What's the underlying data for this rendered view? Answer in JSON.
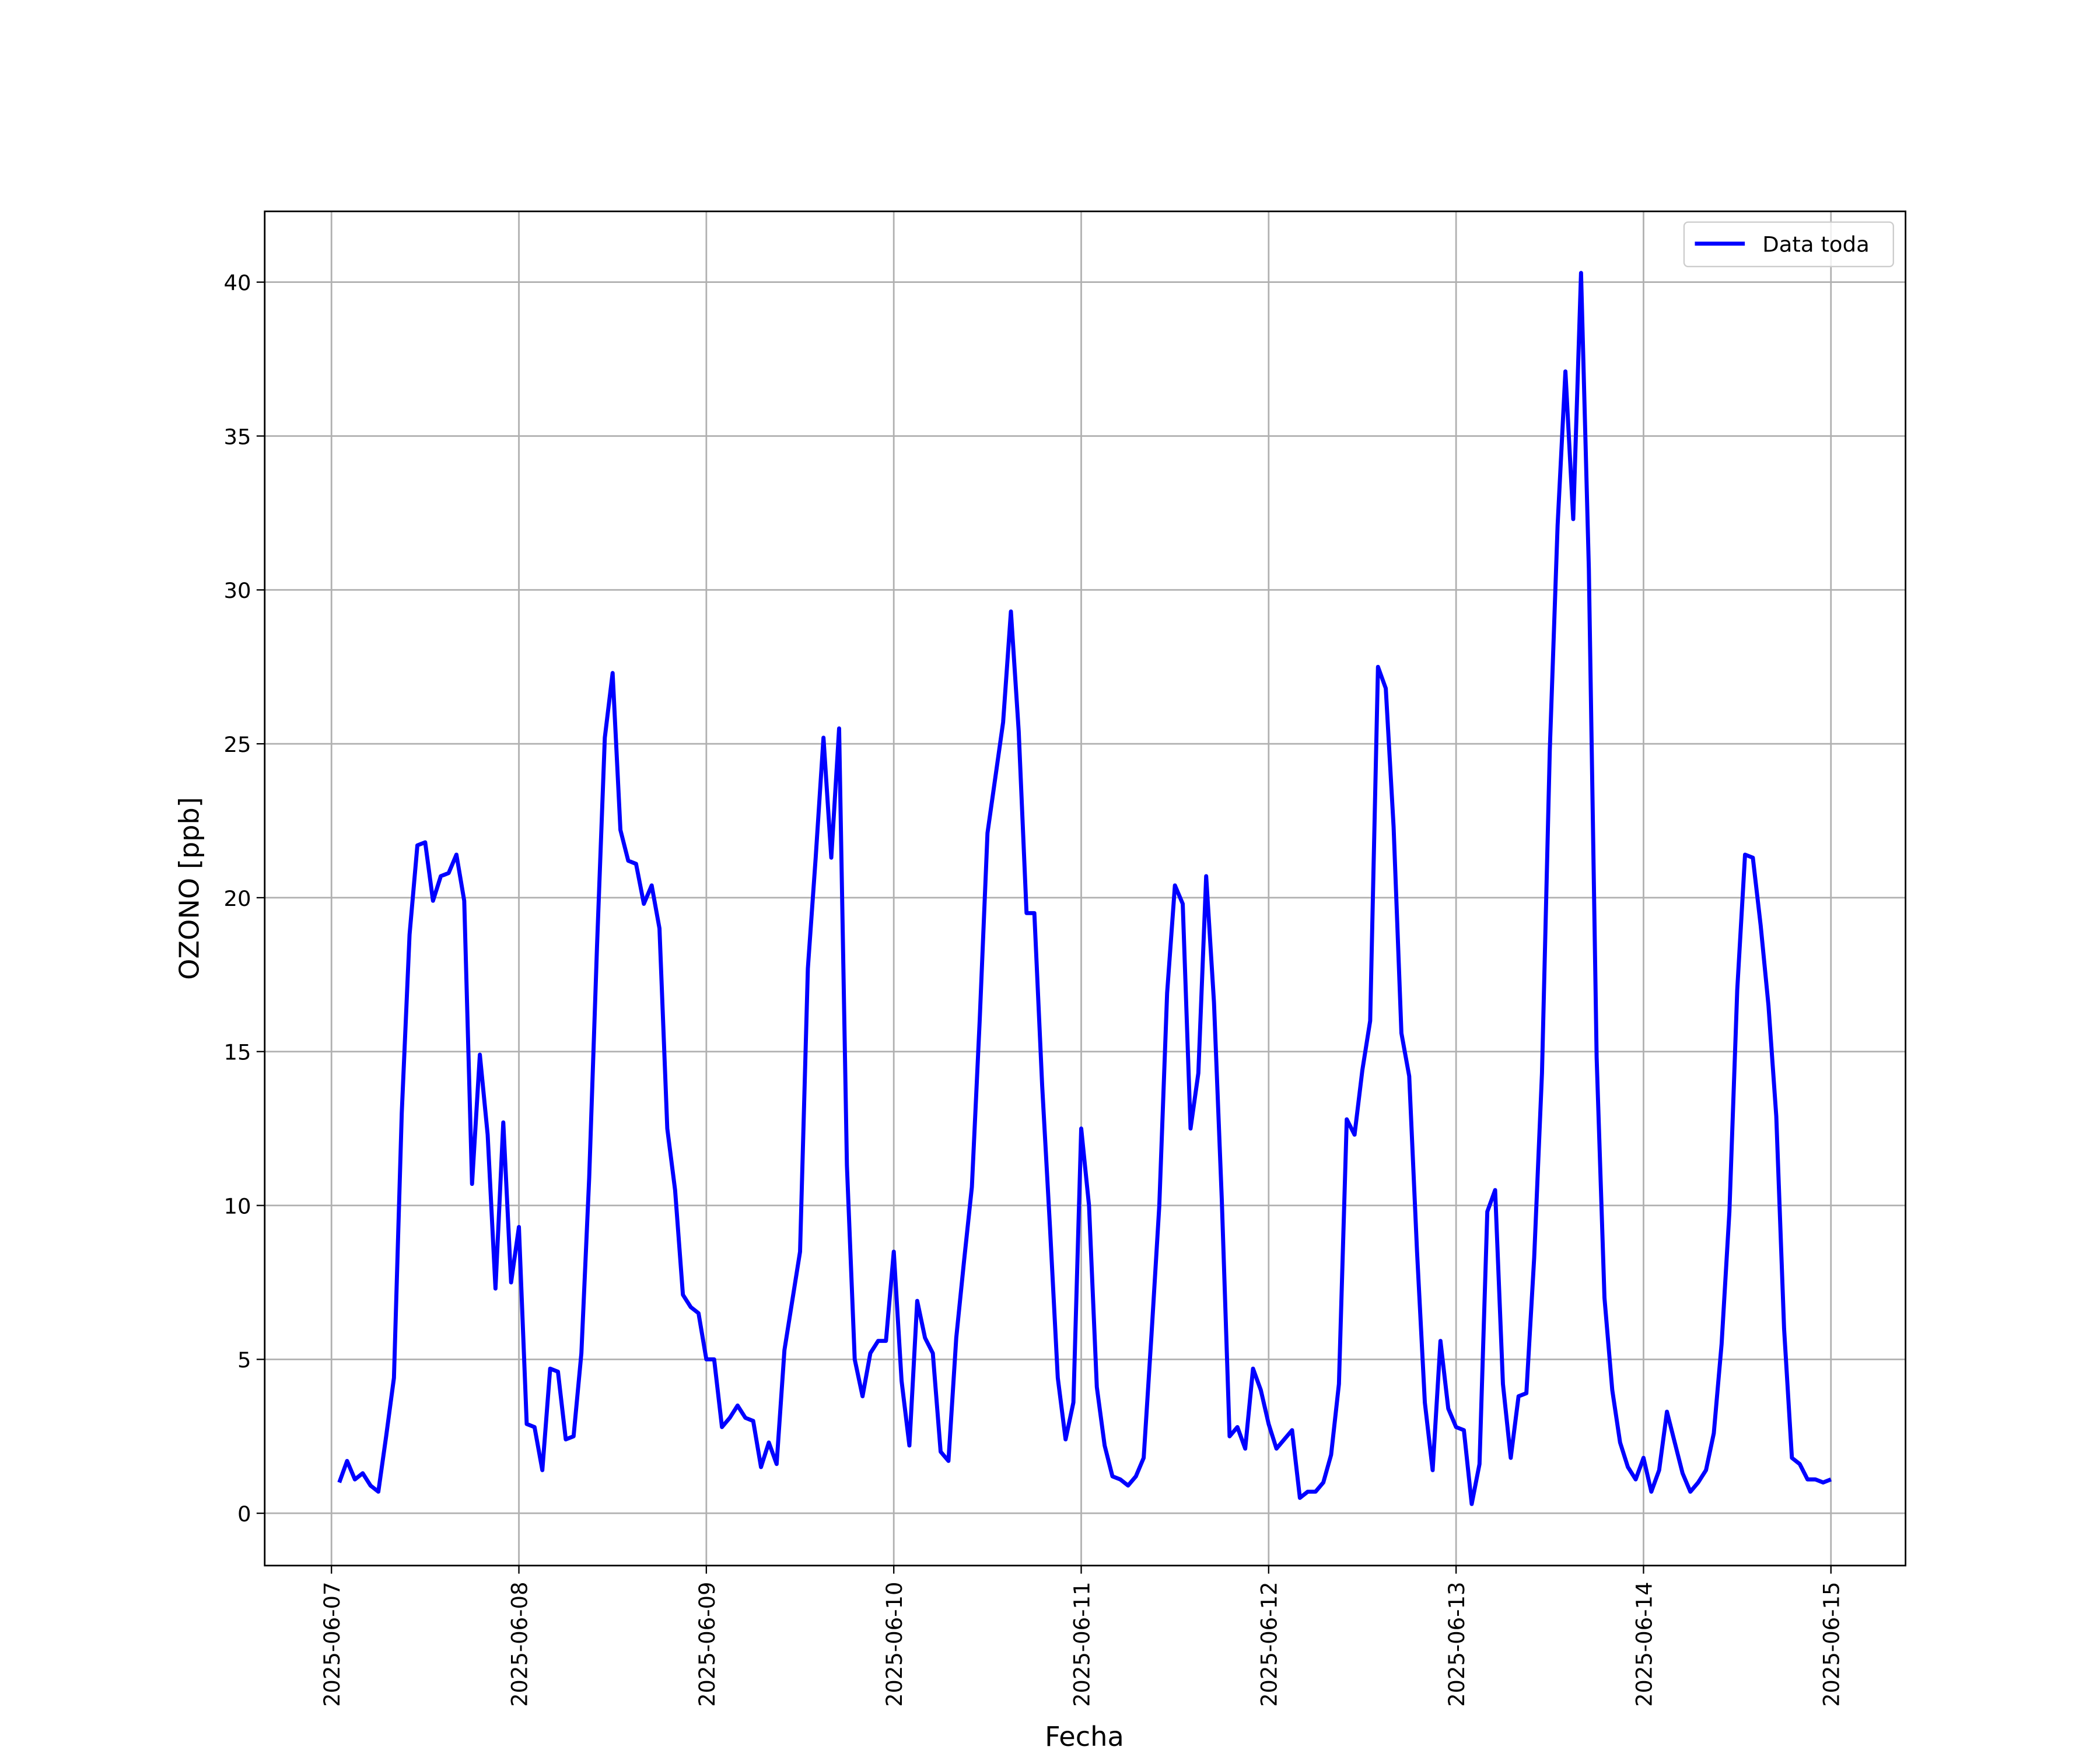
{
  "chart_data": {
    "type": "line",
    "xlabel": "Fecha",
    "ylabel": "OZONO [ppb]",
    "x": [
      "2025-06-07 01:00",
      "2025-06-07 02:00",
      "2025-06-07 03:00",
      "2025-06-07 04:00",
      "2025-06-07 05:00",
      "2025-06-07 06:00",
      "2025-06-07 07:00",
      "2025-06-07 08:00",
      "2025-06-07 09:00",
      "2025-06-07 10:00",
      "2025-06-07 11:00",
      "2025-06-07 12:00",
      "2025-06-07 13:00",
      "2025-06-07 14:00",
      "2025-06-07 15:00",
      "2025-06-07 16:00",
      "2025-06-07 17:00",
      "2025-06-07 18:00",
      "2025-06-07 19:00",
      "2025-06-07 20:00",
      "2025-06-07 21:00",
      "2025-06-07 22:00",
      "2025-06-07 23:00",
      "2025-06-08 00:00",
      "2025-06-08 01:00",
      "2025-06-08 02:00",
      "2025-06-08 03:00",
      "2025-06-08 04:00",
      "2025-06-08 05:00",
      "2025-06-08 06:00",
      "2025-06-08 07:00",
      "2025-06-08 08:00",
      "2025-06-08 09:00",
      "2025-06-08 10:00",
      "2025-06-08 11:00",
      "2025-06-08 12:00",
      "2025-06-08 13:00",
      "2025-06-08 14:00",
      "2025-06-08 15:00",
      "2025-06-08 16:00",
      "2025-06-08 17:00",
      "2025-06-08 18:00",
      "2025-06-08 19:00",
      "2025-06-08 20:00",
      "2025-06-08 21:00",
      "2025-06-08 22:00",
      "2025-06-08 23:00",
      "2025-06-09 00:00",
      "2025-06-09 01:00",
      "2025-06-09 02:00",
      "2025-06-09 03:00",
      "2025-06-09 04:00",
      "2025-06-09 05:00",
      "2025-06-09 06:00",
      "2025-06-09 07:00",
      "2025-06-09 08:00",
      "2025-06-09 09:00",
      "2025-06-09 10:00",
      "2025-06-09 11:00",
      "2025-06-09 12:00",
      "2025-06-09 13:00",
      "2025-06-09 14:00",
      "2025-06-09 15:00",
      "2025-06-09 16:00",
      "2025-06-09 17:00",
      "2025-06-09 18:00",
      "2025-06-09 19:00",
      "2025-06-09 20:00",
      "2025-06-09 21:00",
      "2025-06-09 22:00",
      "2025-06-09 23:00",
      "2025-06-10 00:00",
      "2025-06-10 01:00",
      "2025-06-10 02:00",
      "2025-06-10 03:00",
      "2025-06-10 04:00",
      "2025-06-10 05:00",
      "2025-06-10 06:00",
      "2025-06-10 07:00",
      "2025-06-10 08:00",
      "2025-06-10 09:00",
      "2025-06-10 10:00",
      "2025-06-10 11:00",
      "2025-06-10 12:00",
      "2025-06-10 13:00",
      "2025-06-10 14:00",
      "2025-06-10 15:00",
      "2025-06-10 16:00",
      "2025-06-10 17:00",
      "2025-06-10 18:00",
      "2025-06-10 19:00",
      "2025-06-10 20:00",
      "2025-06-10 21:00",
      "2025-06-10 22:00",
      "2025-06-10 23:00",
      "2025-06-11 00:00",
      "2025-06-11 01:00",
      "2025-06-11 02:00",
      "2025-06-11 03:00",
      "2025-06-11 04:00",
      "2025-06-11 05:00",
      "2025-06-11 06:00",
      "2025-06-11 07:00",
      "2025-06-11 08:00",
      "2025-06-11 09:00",
      "2025-06-11 10:00",
      "2025-06-11 11:00",
      "2025-06-11 12:00",
      "2025-06-11 13:00",
      "2025-06-11 14:00",
      "2025-06-11 15:00",
      "2025-06-11 16:00",
      "2025-06-11 17:00",
      "2025-06-11 18:00",
      "2025-06-11 19:00",
      "2025-06-11 20:00",
      "2025-06-11 21:00",
      "2025-06-11 22:00",
      "2025-06-11 23:00",
      "2025-06-12 00:00",
      "2025-06-12 01:00",
      "2025-06-12 02:00",
      "2025-06-12 03:00",
      "2025-06-12 04:00",
      "2025-06-12 05:00",
      "2025-06-12 06:00",
      "2025-06-12 07:00",
      "2025-06-12 08:00",
      "2025-06-12 09:00",
      "2025-06-12 10:00",
      "2025-06-12 11:00",
      "2025-06-12 12:00",
      "2025-06-12 13:00",
      "2025-06-12 14:00",
      "2025-06-12 15:00",
      "2025-06-12 16:00",
      "2025-06-12 17:00",
      "2025-06-12 18:00",
      "2025-06-12 19:00",
      "2025-06-12 20:00",
      "2025-06-12 21:00",
      "2025-06-12 22:00",
      "2025-06-12 23:00",
      "2025-06-13 00:00",
      "2025-06-13 01:00",
      "2025-06-13 02:00",
      "2025-06-13 03:00",
      "2025-06-13 04:00",
      "2025-06-13 05:00",
      "2025-06-13 06:00",
      "2025-06-13 07:00",
      "2025-06-13 08:00",
      "2025-06-13 09:00",
      "2025-06-13 10:00",
      "2025-06-13 11:00",
      "2025-06-13 12:00",
      "2025-06-13 13:00",
      "2025-06-13 14:00",
      "2025-06-13 15:00",
      "2025-06-13 16:00",
      "2025-06-13 17:00",
      "2025-06-13 18:00",
      "2025-06-13 19:00",
      "2025-06-13 20:00",
      "2025-06-13 21:00",
      "2025-06-13 22:00",
      "2025-06-13 23:00",
      "2025-06-14 00:00",
      "2025-06-14 01:00",
      "2025-06-14 02:00",
      "2025-06-14 03:00",
      "2025-06-14 04:00",
      "2025-06-14 05:00",
      "2025-06-14 06:00",
      "2025-06-14 07:00",
      "2025-06-14 08:00",
      "2025-06-14 09:00",
      "2025-06-14 10:00",
      "2025-06-14 11:00",
      "2025-06-14 12:00",
      "2025-06-14 13:00",
      "2025-06-14 14:00",
      "2025-06-14 15:00",
      "2025-06-14 16:00",
      "2025-06-14 17:00",
      "2025-06-14 18:00",
      "2025-06-14 19:00",
      "2025-06-14 20:00",
      "2025-06-14 21:00",
      "2025-06-14 22:00",
      "2025-06-14 23:00",
      "2025-06-15 00:00"
    ],
    "series": [
      {
        "name": "Data toda",
        "color": "#0000ff",
        "values": [
          1.0,
          1.7,
          1.1,
          1.3,
          0.9,
          0.7,
          2.5,
          4.4,
          13.0,
          18.8,
          21.7,
          21.8,
          19.9,
          20.7,
          20.8,
          21.4,
          19.9,
          10.7,
          14.9,
          12.3,
          7.3,
          12.7,
          7.5,
          9.3,
          2.9,
          2.8,
          1.4,
          4.7,
          4.6,
          2.4,
          2.5,
          5.2,
          10.9,
          18.4,
          25.2,
          27.3,
          22.2,
          21.2,
          21.1,
          19.8,
          20.4,
          19.0,
          12.5,
          10.5,
          7.1,
          6.7,
          6.5,
          5.0,
          5.0,
          2.8,
          3.1,
          3.5,
          3.1,
          3.0,
          1.5,
          2.3,
          1.6,
          5.3,
          6.9,
          8.5,
          17.7,
          21.3,
          25.2,
          21.3,
          25.5,
          11.3,
          5.0,
          3.8,
          5.2,
          5.6,
          5.6,
          8.5,
          4.3,
          2.2,
          6.9,
          5.7,
          5.2,
          2.0,
          1.7,
          5.7,
          8.2,
          10.6,
          16.0,
          22.1,
          23.9,
          25.7,
          29.3,
          25.4,
          19.5,
          19.5,
          13.9,
          9.3,
          4.4,
          2.4,
          3.6,
          12.5,
          10.0,
          4.1,
          2.2,
          1.2,
          1.1,
          0.9,
          1.2,
          1.8,
          5.8,
          10.0,
          16.9,
          20.4,
          19.8,
          12.5,
          14.3,
          20.7,
          16.6,
          10.2,
          2.5,
          2.8,
          2.1,
          4.7,
          4.0,
          2.9,
          2.1,
          2.4,
          2.7,
          0.5,
          0.7,
          0.7,
          1.0,
          1.9,
          4.2,
          12.8,
          12.3,
          14.4,
          16.0,
          27.5,
          26.8,
          22.3,
          15.6,
          14.2,
          8.5,
          3.6,
          1.4,
          5.6,
          3.4,
          2.8,
          2.7,
          0.3,
          1.6,
          9.8,
          10.5,
          4.2,
          1.8,
          3.8,
          3.9,
          8.3,
          14.3,
          24.8,
          32.1,
          37.1,
          32.3,
          40.3,
          30.7,
          14.8,
          7.0,
          4.0,
          2.3,
          1.5,
          1.1,
          1.8,
          0.7,
          1.4,
          3.3,
          2.3,
          1.3,
          0.7,
          1.0,
          1.4,
          2.6,
          5.5,
          9.8,
          17.0,
          21.4,
          21.3,
          19.1,
          16.5,
          12.9,
          6.0,
          1.8,
          1.6,
          1.1,
          1.1,
          1.0,
          1.1
        ]
      }
    ],
    "xlim": [
      "2025-06-06 15:27",
      "2025-06-15 09:33"
    ],
    "xticks": [
      "2025-06-07",
      "2025-06-08",
      "2025-06-09",
      "2025-06-10",
      "2025-06-11",
      "2025-06-12",
      "2025-06-13",
      "2025-06-14",
      "2025-06-15"
    ],
    "ylim": [
      -1.7,
      42.3
    ],
    "yticks": [
      0,
      5,
      10,
      15,
      20,
      25,
      30,
      35,
      40
    ],
    "grid": true,
    "legend": "upper right"
  }
}
